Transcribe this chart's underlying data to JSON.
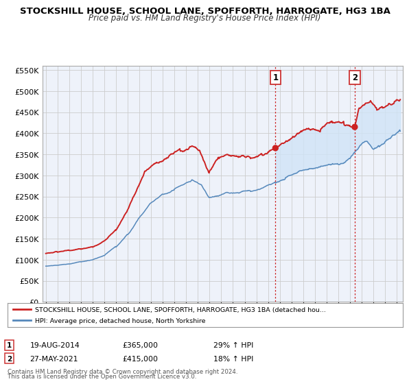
{
  "title": "STOCKSHILL HOUSE, SCHOOL LANE, SPOFFORTH, HARROGATE, HG3 1BA",
  "subtitle": "Price paid vs. HM Land Registry's House Price Index (HPI)",
  "ylim": [
    0,
    560000
  ],
  "yticks": [
    0,
    50000,
    100000,
    150000,
    200000,
    250000,
    300000,
    350000,
    400000,
    450000,
    500000,
    550000
  ],
  "xlim_start": 1994.7,
  "xlim_end": 2025.5,
  "red_color": "#cc2222",
  "blue_color": "#5588bb",
  "fill_color": "#d0e4f7",
  "background_color": "#eef2fa",
  "grid_color": "#cccccc",
  "sale1_date": 2014.63,
  "sale1_price": 365000,
  "sale2_date": 2021.41,
  "sale2_price": 415000,
  "legend_line1": "STOCKSHILL HOUSE, SCHOOL LANE, SPOFFORTH, HARROGATE, HG3 1BA (detached hou...",
  "legend_line2": "HPI: Average price, detached house, North Yorkshire",
  "annotation1_date": "19-AUG-2014",
  "annotation1_price": "£365,000",
  "annotation1_hpi": "29% ↑ HPI",
  "annotation2_date": "27-MAY-2021",
  "annotation2_price": "£415,000",
  "annotation2_hpi": "18% ↑ HPI",
  "footer1": "Contains HM Land Registry data © Crown copyright and database right 2024.",
  "footer2": "This data is licensed under the Open Government Licence v3.0."
}
